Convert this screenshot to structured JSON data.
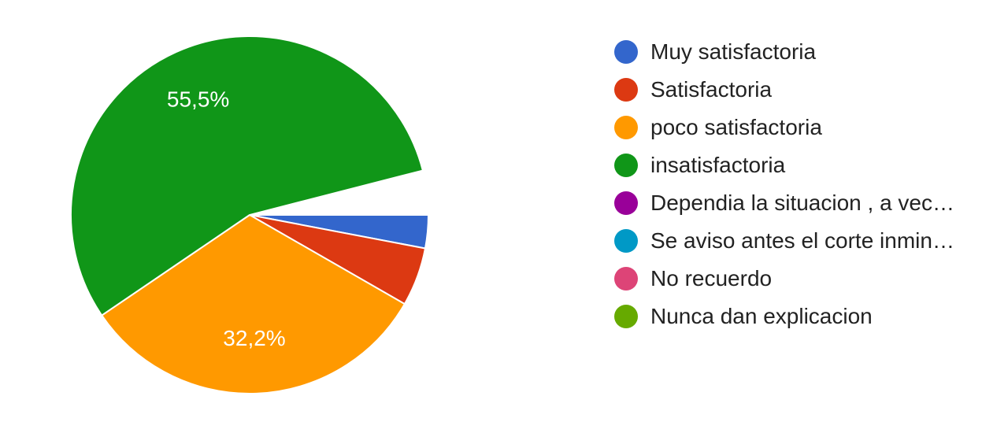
{
  "chart_data": {
    "type": "pie",
    "slices": [
      {
        "label": "Muy satisfactoria",
        "value": 3.0,
        "color": "#3366cc",
        "data_label": ""
      },
      {
        "label": "Satisfactoria",
        "value": 5.3,
        "color": "#dc3912",
        "data_label": ""
      },
      {
        "label": "poco satisfactoria",
        "value": 32.2,
        "color": "#ff9900",
        "data_label": "32,2%"
      },
      {
        "label": "insatisfactoria",
        "value": 55.5,
        "color": "#109618",
        "data_label": "55,5%"
      },
      {
        "label": "Dependia la situacion , a vec…",
        "value": 0,
        "color": "#990099",
        "data_label": ""
      },
      {
        "label": "Se aviso antes el corte inmin…",
        "value": 0,
        "color": "#0099c6",
        "data_label": ""
      },
      {
        "label": "No recuerdo",
        "value": 0,
        "color": "#dd4477",
        "data_label": ""
      },
      {
        "label": "Nunca dan explicacion",
        "value": 0,
        "color": "#66aa00",
        "data_label": ""
      }
    ],
    "remainder_value": 4.0,
    "legend_position": "right"
  }
}
